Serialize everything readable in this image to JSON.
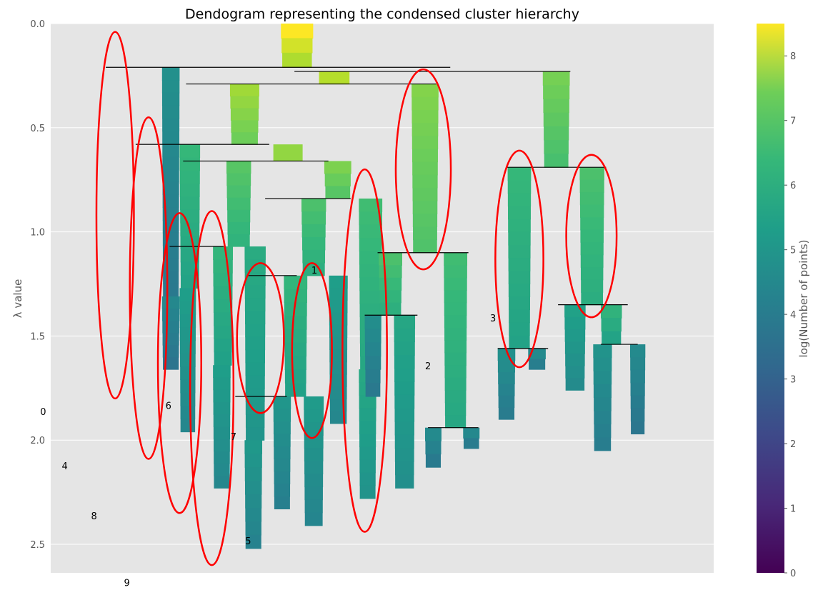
{
  "chart_data": {
    "type": "dendrogram",
    "title": "Dendogram representing the condensed cluster hierarchy",
    "ylabel": "λ value",
    "ylim": [
      0,
      2.64
    ],
    "y_inverted": true,
    "y_ticks": [
      0.0,
      0.5,
      1.0,
      1.5,
      2.0,
      2.5
    ],
    "y_tick_labels": [
      "0.0",
      "0.5",
      "1.0",
      "1.5",
      "2.0",
      "2.5"
    ],
    "grid": true,
    "colorbar": {
      "label": "log(Number of points)",
      "range": [
        0,
        8.5
      ],
      "ticks": [
        0,
        1,
        2,
        3,
        4,
        5,
        6,
        7,
        8
      ],
      "tick_labels": [
        "0",
        "1",
        "2",
        "3",
        "4",
        "5",
        "6",
        "7",
        "8"
      ]
    },
    "branches": [
      {
        "x": 34.3,
        "w": 5.5,
        "y0": 0.0,
        "y1": 0.21,
        "c": 8.5
      },
      {
        "x": 14.0,
        "w": 3.0,
        "y0": 0.21,
        "y1": 1.31,
        "c": 4.5
      },
      {
        "x": 14.0,
        "w": 3.0,
        "y0": 1.31,
        "y1": 1.66,
        "c": 4.2
      },
      {
        "x": 40.8,
        "w": 5.2,
        "y0": 0.23,
        "y1": 0.29,
        "c": 8.0
      },
      {
        "x": 25.6,
        "w": 5.0,
        "y0": 0.29,
        "y1": 0.58,
        "c": 7.7
      },
      {
        "x": 17.0,
        "w": 3.5,
        "y0": 0.58,
        "y1": 1.27,
        "c": 6.0
      },
      {
        "x": 17.0,
        "w": 2.8,
        "y0": 1.27,
        "y1": 1.96,
        "c": 5.0
      },
      {
        "x": 33.0,
        "w": 5.0,
        "y0": 0.58,
        "y1": 0.66,
        "c": 7.5
      },
      {
        "x": 25.0,
        "w": 4.2,
        "y0": 0.66,
        "y1": 1.07,
        "c": 6.6
      },
      {
        "x": 22.7,
        "w": 3.4,
        "y0": 1.07,
        "y1": 1.64,
        "c": 5.9
      },
      {
        "x": 22.7,
        "w": 3.0,
        "y0": 1.64,
        "y1": 2.23,
        "c": 5.0
      },
      {
        "x": 28.1,
        "w": 3.6,
        "y0": 1.07,
        "y1": 2.0,
        "c": 5.5
      },
      {
        "x": 28.1,
        "w": 3.0,
        "y0": 2.0,
        "y1": 2.52,
        "c": 4.8
      },
      {
        "x": 41.7,
        "w": 4.6,
        "y0": 0.66,
        "y1": 0.84,
        "c": 7.2
      },
      {
        "x": 37.8,
        "w": 4.2,
        "y0": 0.84,
        "y1": 1.21,
        "c": 6.4
      },
      {
        "x": 34.8,
        "w": 4.0,
        "y0": 1.21,
        "y1": 1.79,
        "c": 5.9
      },
      {
        "x": 33.0,
        "w": 3.0,
        "y0": 1.79,
        "y1": 2.33,
        "c": 4.7
      },
      {
        "x": 38.2,
        "w": 3.4,
        "y0": 1.79,
        "y1": 2.41,
        "c": 4.9
      },
      {
        "x": 42.5,
        "w": 3.2,
        "y0": 1.21,
        "y1": 1.92,
        "c": 5.0
      },
      {
        "x": 47.6,
        "w": 4.0,
        "y0": 0.84,
        "y1": 1.66,
        "c": 6.2
      },
      {
        "x": 47.6,
        "w": 3.0,
        "y0": 1.66,
        "y1": 2.28,
        "c": 5.4
      },
      {
        "x": 56.6,
        "w": 4.6,
        "y0": 0.29,
        "y1": 1.1,
        "c": 7.3
      },
      {
        "x": 51.0,
        "w": 4.0,
        "y0": 1.1,
        "y1": 1.4,
        "c": 6.4
      },
      {
        "x": 48.6,
        "w": 2.8,
        "y0": 1.4,
        "y1": 1.79,
        "c": 4.4
      },
      {
        "x": 53.6,
        "w": 3.6,
        "y0": 1.4,
        "y1": 2.23,
        "c": 5.3
      },
      {
        "x": 62.1,
        "w": 4.0,
        "y0": 1.1,
        "y1": 1.94,
        "c": 6.2
      },
      {
        "x": 58.9,
        "w": 2.8,
        "y0": 1.94,
        "y1": 2.13,
        "c": 4.3
      },
      {
        "x": 65.4,
        "w": 2.8,
        "y0": 1.94,
        "y1": 2.04,
        "c": 4.2
      },
      {
        "x": 79.0,
        "w": 4.6,
        "y0": 0.23,
        "y1": 0.69,
        "c": 7.1
      },
      {
        "x": 73.0,
        "w": 4.0,
        "y0": 0.69,
        "y1": 1.56,
        "c": 6.0
      },
      {
        "x": 71.3,
        "w": 3.0,
        "y0": 1.56,
        "y1": 1.9,
        "c": 4.5
      },
      {
        "x": 76.5,
        "w": 3.0,
        "y0": 1.56,
        "y1": 1.66,
        "c": 4.3
      },
      {
        "x": 85.3,
        "w": 4.2,
        "y0": 0.69,
        "y1": 1.35,
        "c": 6.4
      },
      {
        "x": 82.7,
        "w": 3.6,
        "y0": 1.35,
        "y1": 1.76,
        "c": 5.1
      },
      {
        "x": 88.9,
        "w": 3.6,
        "y0": 1.35,
        "y1": 1.54,
        "c": 5.8
      },
      {
        "x": 87.6,
        "w": 3.2,
        "y0": 1.54,
        "y1": 2.05,
        "c": 4.6
      },
      {
        "x": 93.9,
        "w": 2.6,
        "y0": 1.54,
        "y1": 1.97,
        "c": 4.3
      }
    ],
    "joins": [
      {
        "x0": 4.4,
        "x1": 63.2,
        "y": 0.21
      },
      {
        "x0": 36.6,
        "x1": 83.7,
        "y": 0.23
      },
      {
        "x0": 18.1,
        "x1": 60.8,
        "y": 0.29
      },
      {
        "x0": 9.5,
        "x1": 32.3,
        "y": 0.58
      },
      {
        "x0": 17.6,
        "x1": 42.4,
        "y": 0.66
      },
      {
        "x0": 72.9,
        "x1": 89.8,
        "y": 0.69
      },
      {
        "x0": 31.6,
        "x1": 46.2,
        "y": 0.84
      },
      {
        "x0": 15.3,
        "x1": 24.5,
        "y": 1.07
      },
      {
        "x0": 50.8,
        "x1": 66.3,
        "y": 1.1
      },
      {
        "x0": 28.7,
        "x1": 37.0,
        "y": 1.21
      },
      {
        "x0": 81.6,
        "x1": 93.5,
        "y": 1.35
      },
      {
        "x0": 48.6,
        "x1": 57.6,
        "y": 1.4
      },
      {
        "x0": 88.9,
        "x1": 95.2,
        "y": 1.54
      },
      {
        "x0": 71.3,
        "x1": 79.9,
        "y": 1.56
      },
      {
        "x0": 26.5,
        "x1": 35.3,
        "y": 1.79
      },
      {
        "x0": 59.4,
        "x1": 68.0,
        "y": 1.94
      }
    ],
    "selection_ellipses": [
      {
        "cx": 6.0,
        "cy": 0.92,
        "rx": 3.2,
        "ry": 0.88
      },
      {
        "cx": 11.7,
        "cy": 1.27,
        "rx": 3.2,
        "ry": 0.82
      },
      {
        "cx": 17.0,
        "cy": 1.63,
        "rx": 3.7,
        "ry": 0.72
      },
      {
        "cx": 22.5,
        "cy": 1.75,
        "rx": 3.7,
        "ry": 0.85
      },
      {
        "cx": 30.8,
        "cy": 1.51,
        "rx": 4.0,
        "ry": 0.36
      },
      {
        "cx": 39.6,
        "cy": 1.57,
        "rx": 3.4,
        "ry": 0.42
      },
      {
        "cx": 48.6,
        "cy": 1.57,
        "rx": 3.8,
        "ry": 0.87
      },
      {
        "cx": 58.6,
        "cy": 0.7,
        "rx": 4.7,
        "ry": 0.48
      },
      {
        "cx": 75.0,
        "cy": 1.13,
        "rx": 4.1,
        "ry": 0.52
      },
      {
        "cx": 87.3,
        "cy": 1.02,
        "rx": 4.3,
        "ry": 0.39
      }
    ],
    "annotations": [
      {
        "text": "0",
        "x": -6.3,
        "y": 1.88
      },
      {
        "text": "1",
        "x": 40.0,
        "y": 1.2
      },
      {
        "text": "2",
        "x": 59.4,
        "y": 1.66
      },
      {
        "text": "3",
        "x": 70.5,
        "y": 1.43
      },
      {
        "text": "4",
        "x": -2.6,
        "y": 2.14
      },
      {
        "text": "5",
        "x": 28.7,
        "y": 2.5
      },
      {
        "text": "6",
        "x": 15.1,
        "y": 1.85
      },
      {
        "text": "7",
        "x": 26.2,
        "y": 2.0
      },
      {
        "text": "8",
        "x": 2.4,
        "y": 2.38
      },
      {
        "text": "9",
        "x": 8.0,
        "y": 2.7
      }
    ]
  }
}
